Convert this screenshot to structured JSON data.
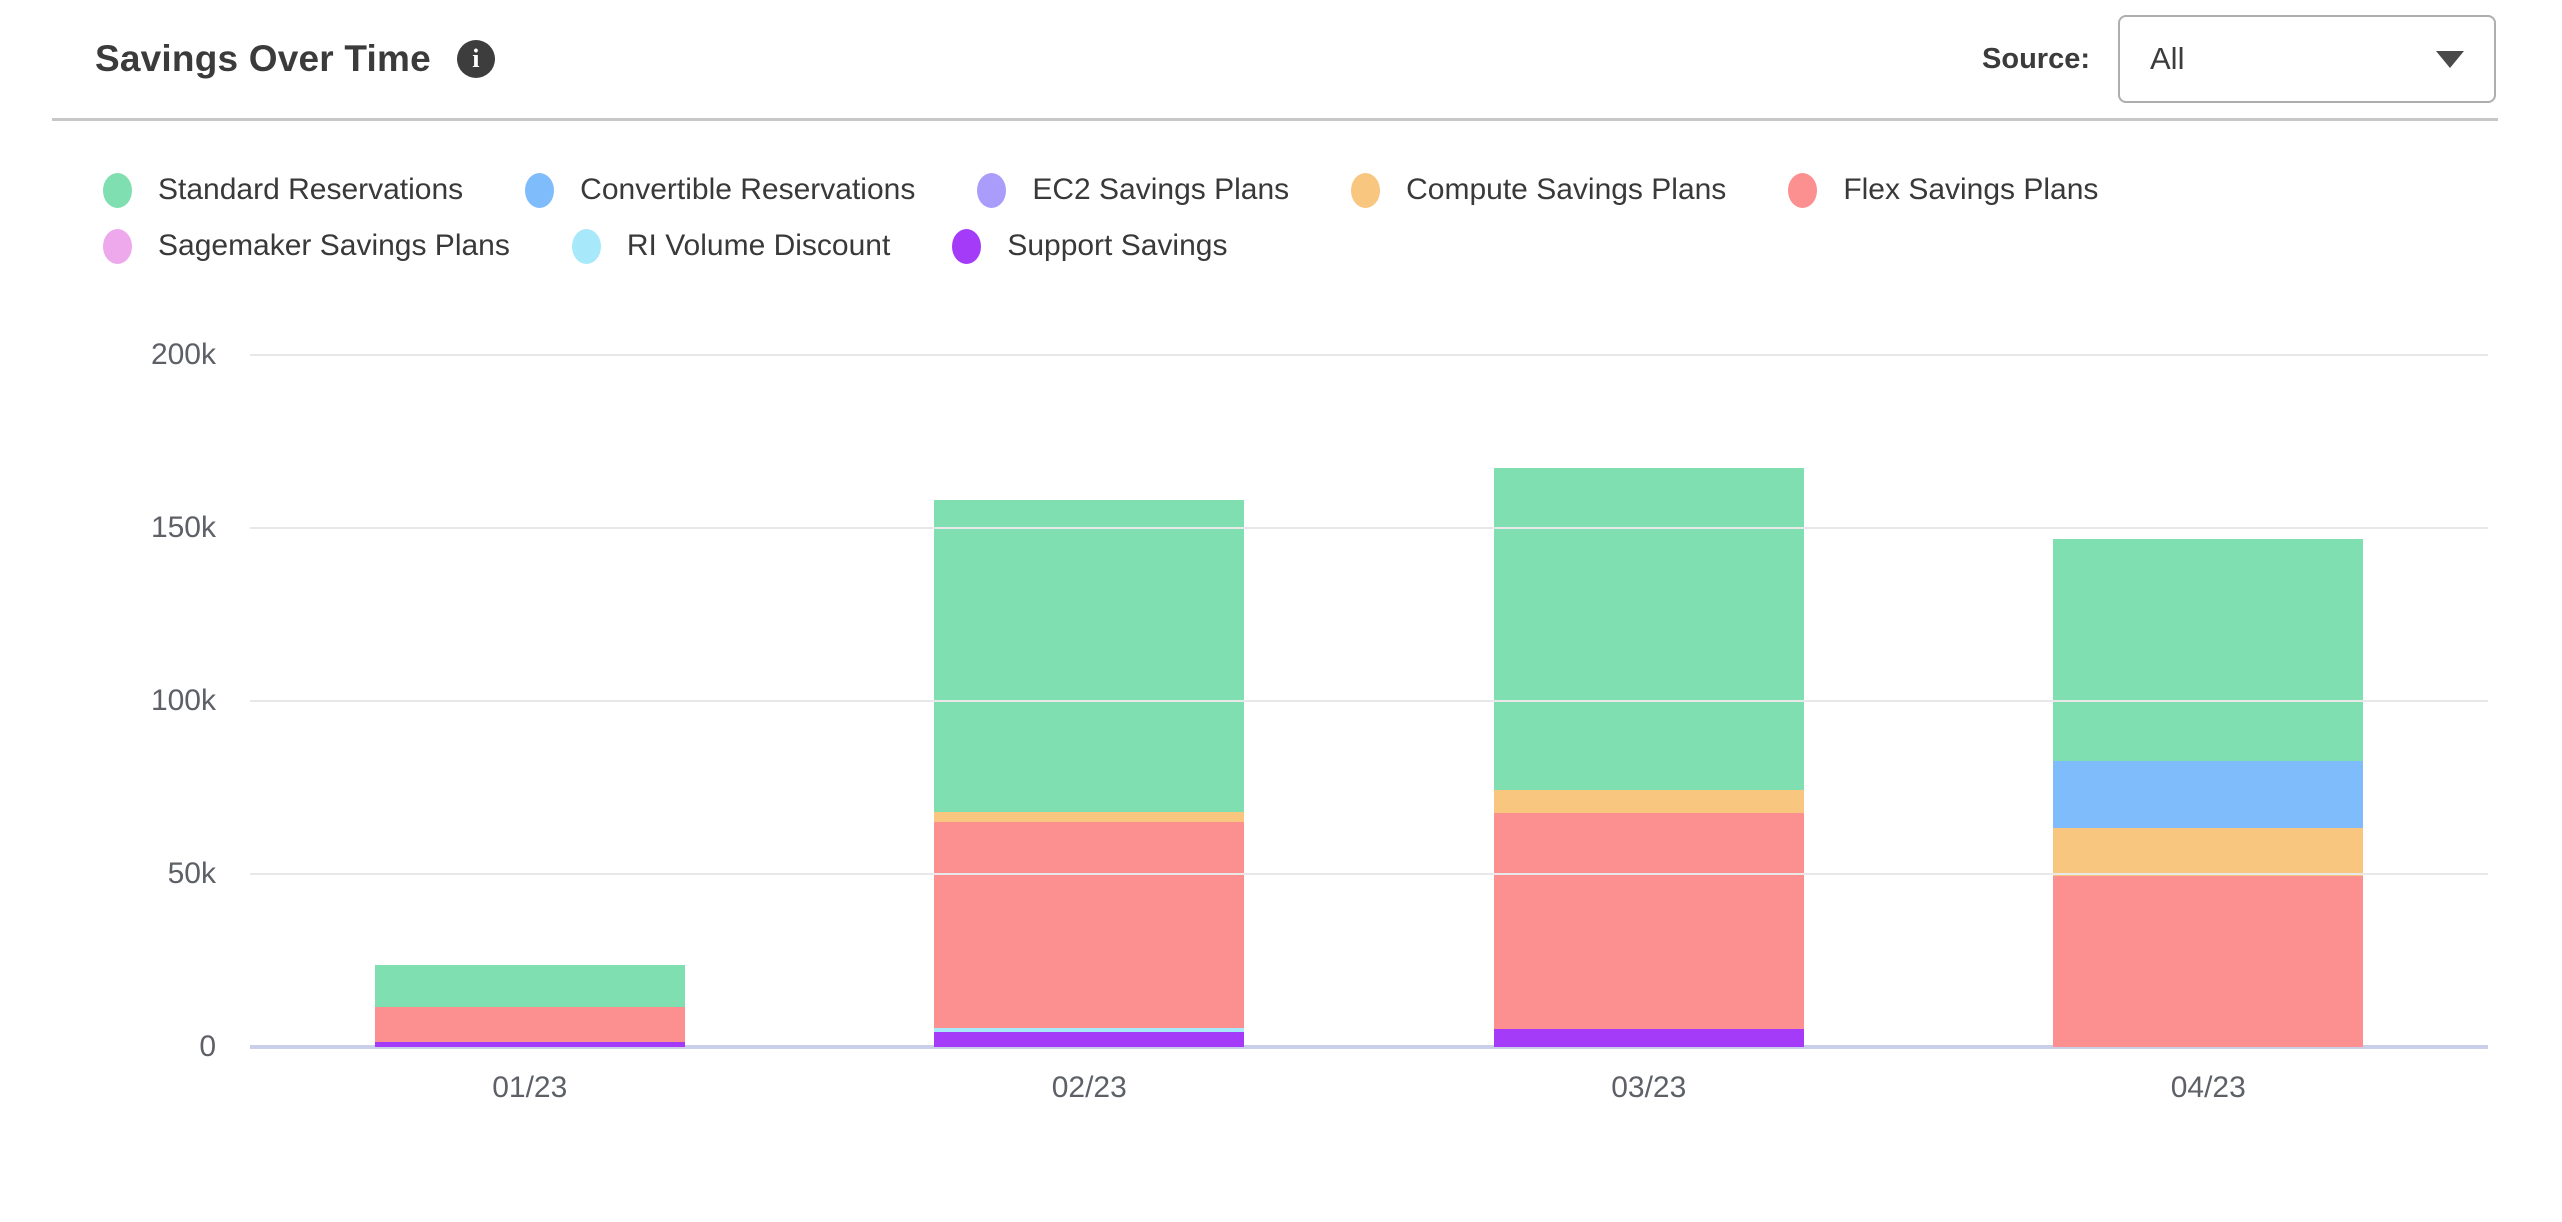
{
  "header": {
    "title": "Savings Over Time",
    "info_icon": "info-circle-icon",
    "source_label": "Source:",
    "source_value": "All",
    "caret_icon": "chevron-down-icon"
  },
  "chart_data": {
    "type": "bar",
    "subtype": "stacked-vertical",
    "title": "Savings Over Time",
    "unit": "thousands (k)",
    "categories": [
      "01/23",
      "02/23",
      "03/23",
      "04/23"
    ],
    "series": [
      {
        "name": "Standard Reservations",
        "color": "#7fdfb0",
        "values": [
          12.3,
          90.1,
          93.0,
          64.2
        ]
      },
      {
        "name": "Convertible Reservations",
        "color": "#7fbcfc",
        "values": [
          0,
          0,
          0,
          19.4
        ]
      },
      {
        "name": "EC2 Savings Plans",
        "color": "#a99cfb",
        "values": [
          0,
          0,
          0,
          0
        ]
      },
      {
        "name": "Compute Savings Plans",
        "color": "#f8c67e",
        "values": [
          0,
          2.8,
          6.8,
          13.9
        ]
      },
      {
        "name": "Flex Savings Plans",
        "color": "#fc8f8f",
        "values": [
          10.0,
          59.7,
          62.3,
          49.4
        ]
      },
      {
        "name": "Sagemaker Savings Plans",
        "color": "#eda9ec",
        "values": [
          0,
          0,
          0,
          0
        ]
      },
      {
        "name": "RI Volume Discount",
        "color": "#a8e8fb",
        "values": [
          0,
          1.1,
          0,
          0
        ]
      },
      {
        "name": "Support Savings",
        "color": "#a43bf8",
        "values": [
          1.5,
          4.3,
          5.2,
          0
        ]
      }
    ],
    "stack_order_bottom_to_top": [
      "Support Savings",
      "RI Volume Discount",
      "Sagemaker Savings Plans",
      "Flex Savings Plans",
      "Compute Savings Plans",
      "EC2 Savings Plans",
      "Convertible Reservations",
      "Standard Reservations"
    ],
    "y_ticks_top_to_bottom": [
      "200k",
      "150k",
      "100k",
      "50k",
      "0"
    ],
    "ylim_k": [
      0,
      200
    ],
    "grid": "horizontal",
    "legend_position": "top",
    "legend_row_split": 5
  }
}
